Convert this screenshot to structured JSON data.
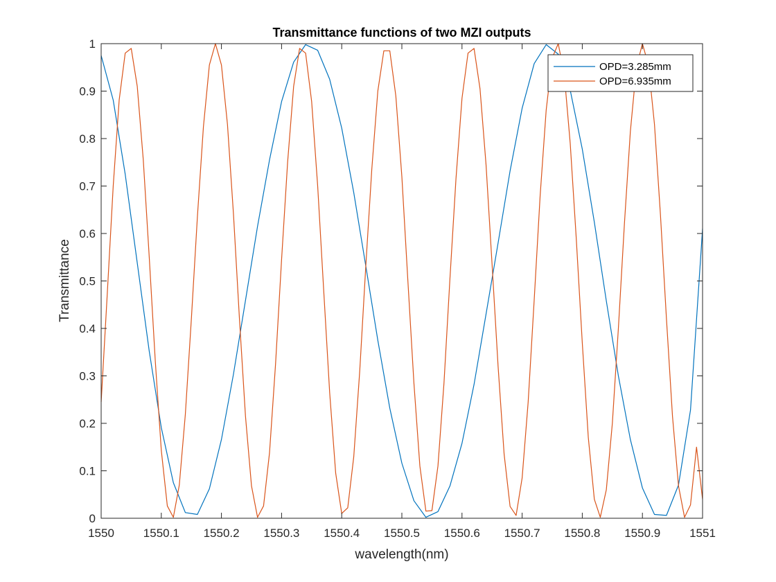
{
  "chart_data": {
    "type": "line",
    "title": "Transmittance functions of two MZI outputs",
    "xlabel": "wavelength(nm)",
    "ylabel": "Transmittance",
    "xlim": [
      1550,
      1551
    ],
    "ylim": [
      0,
      1
    ],
    "xticks": [
      1550,
      1550.1,
      1550.2,
      1550.3,
      1550.4,
      1550.5,
      1550.6,
      1550.7,
      1550.8,
      1550.9,
      1551
    ],
    "xtick_labels": [
      "1550",
      "1550.1",
      "1550.2",
      "1550.3",
      "1550.4",
      "1550.5",
      "1550.6",
      "1550.7",
      "1550.8",
      "1550.9",
      "1551"
    ],
    "yticks": [
      0,
      0.1,
      0.2,
      0.3,
      0.4,
      0.5,
      0.6,
      0.7,
      0.8,
      0.9,
      1
    ],
    "ytick_labels": [
      "0",
      "0.1",
      "0.2",
      "0.3",
      "0.4",
      "0.5",
      "0.6",
      "0.7",
      "0.8",
      "0.9",
      "1"
    ],
    "grid": false,
    "legend_position": "top-right",
    "series": [
      {
        "name": "OPD=3.285mm",
        "color": "#0072BD",
        "x": [
          1550.0,
          1550.02,
          1550.04,
          1550.06,
          1550.08,
          1550.1,
          1550.12,
          1550.14,
          1550.16,
          1550.18,
          1550.2,
          1550.22,
          1550.24,
          1550.26,
          1550.28,
          1550.3,
          1550.32,
          1550.34,
          1550.36,
          1550.38,
          1550.4,
          1550.42,
          1550.44,
          1550.46,
          1550.48,
          1550.5,
          1550.52,
          1550.54,
          1550.56,
          1550.58,
          1550.6,
          1550.62,
          1550.64,
          1550.66,
          1550.68,
          1550.7,
          1550.72,
          1550.74,
          1550.76,
          1550.78,
          1550.8,
          1550.82,
          1550.84,
          1550.86,
          1550.88,
          1550.9,
          1550.92,
          1550.94,
          1550.96,
          1550.98,
          1551.0
        ],
        "y": [
          0.975,
          0.881,
          0.725,
          0.538,
          0.352,
          0.191,
          0.075,
          0.012,
          0.008,
          0.062,
          0.166,
          0.304,
          0.459,
          0.615,
          0.755,
          0.878,
          0.961,
          0.998,
          0.986,
          0.925,
          0.822,
          0.686,
          0.532,
          0.375,
          0.232,
          0.116,
          0.037,
          0.002,
          0.014,
          0.068,
          0.158,
          0.282,
          0.43,
          0.58,
          0.732,
          0.864,
          0.958,
          0.998,
          0.978,
          0.902,
          0.778,
          0.624,
          0.458,
          0.3,
          0.166,
          0.064,
          0.008,
          0.006,
          0.07,
          0.228,
          0.61
        ]
      },
      {
        "name": "OPD=6.935mm",
        "color": "#D95319",
        "x": [
          1550.0,
          1550.01,
          1550.02,
          1550.03,
          1550.04,
          1550.05,
          1550.06,
          1550.07,
          1550.08,
          1550.09,
          1550.1,
          1550.11,
          1550.12,
          1550.13,
          1550.14,
          1550.15,
          1550.16,
          1550.17,
          1550.18,
          1550.19,
          1550.2,
          1550.21,
          1550.22,
          1550.23,
          1550.24,
          1550.25,
          1550.26,
          1550.27,
          1550.28,
          1550.29,
          1550.3,
          1550.31,
          1550.32,
          1550.33,
          1550.34,
          1550.35,
          1550.36,
          1550.37,
          1550.38,
          1550.39,
          1550.4,
          1550.41,
          1550.42,
          1550.43,
          1550.44,
          1550.45,
          1550.46,
          1550.47,
          1550.48,
          1550.49,
          1550.5,
          1550.51,
          1550.52,
          1550.53,
          1550.54,
          1550.55,
          1550.56,
          1550.57,
          1550.58,
          1550.59,
          1550.6,
          1550.61,
          1550.62,
          1550.63,
          1550.64,
          1550.65,
          1550.66,
          1550.67,
          1550.68,
          1550.69,
          1550.7,
          1550.71,
          1550.72,
          1550.73,
          1550.74,
          1550.75,
          1550.76,
          1550.77,
          1550.78,
          1550.79,
          1550.8,
          1550.81,
          1550.82,
          1550.83,
          1550.84,
          1550.85,
          1550.86,
          1550.87,
          1550.88,
          1550.89,
          1550.9,
          1550.91,
          1550.92,
          1550.93,
          1550.94,
          1550.95,
          1550.96,
          1550.97,
          1550.98,
          1550.99,
          1551.0
        ],
        "y": [
          0.245,
          0.47,
          0.7,
          0.881,
          0.98,
          0.99,
          0.91,
          0.755,
          0.55,
          0.332,
          0.143,
          0.026,
          0.002,
          0.07,
          0.219,
          0.42,
          0.635,
          0.825,
          0.955,
          1.0,
          0.955,
          0.83,
          0.64,
          0.42,
          0.215,
          0.068,
          0.002,
          0.026,
          0.138,
          0.325,
          0.545,
          0.75,
          0.91,
          0.99,
          0.98,
          0.878,
          0.7,
          0.48,
          0.265,
          0.095,
          0.01,
          0.022,
          0.13,
          0.31,
          0.53,
          0.735,
          0.9,
          0.985,
          0.985,
          0.89,
          0.72,
          0.5,
          0.285,
          0.11,
          0.015,
          0.016,
          0.11,
          0.285,
          0.505,
          0.715,
          0.885,
          0.98,
          0.99,
          0.905,
          0.745,
          0.535,
          0.32,
          0.135,
          0.025,
          0.006,
          0.085,
          0.245,
          0.46,
          0.68,
          0.86,
          0.97,
          1.0,
          0.935,
          0.79,
          0.59,
          0.37,
          0.17,
          0.04,
          0.002,
          0.06,
          0.2,
          0.4,
          0.62,
          0.815,
          0.95,
          1.0,
          0.955,
          0.83,
          0.64,
          0.42,
          0.215,
          0.068,
          0.002,
          0.028,
          0.15,
          0.04
        ]
      }
    ]
  }
}
